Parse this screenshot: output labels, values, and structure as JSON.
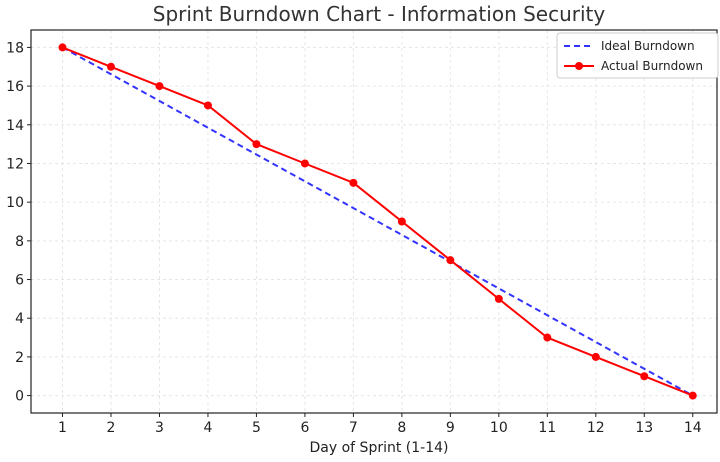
{
  "chart_data": {
    "type": "line",
    "title": "Sprint Burndown Chart - Information Security",
    "xlabel": "Day of Sprint (1-14)",
    "ylabel": "",
    "xlim": [
      0.35,
      14.5
    ],
    "ylim": [
      -0.9,
      18.9
    ],
    "x_ticks": [
      1,
      2,
      3,
      4,
      5,
      6,
      7,
      8,
      9,
      10,
      11,
      12,
      13,
      14
    ],
    "y_ticks": [
      0,
      2,
      4,
      6,
      8,
      10,
      12,
      14,
      16,
      18
    ],
    "grid": true,
    "legend_position": "top-right",
    "series": [
      {
        "name": "Ideal Burndown",
        "style": "dashed",
        "color": "#3333ff",
        "x": [
          1,
          14
        ],
        "y": [
          18,
          0
        ]
      },
      {
        "name": "Actual Burndown",
        "style": "solid-markers",
        "color": "#ff0000",
        "x": [
          1,
          2,
          3,
          4,
          5,
          6,
          7,
          8,
          9,
          10,
          11,
          12,
          13,
          14
        ],
        "y": [
          18,
          17,
          16,
          15,
          13,
          12,
          11,
          9,
          7,
          5,
          3,
          2,
          1,
          0
        ]
      }
    ]
  }
}
